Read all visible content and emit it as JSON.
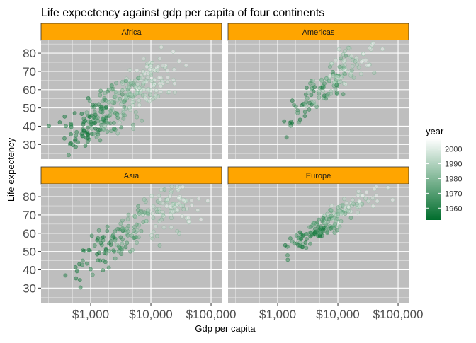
{
  "chart_data": {
    "type": "scatter",
    "title": "Life expectency against gdp per capita of four continents",
    "xlabel": "Gdp per capita",
    "ylabel": "Life expectency",
    "x_scale": "log10",
    "xlim": [
      150,
      150000
    ],
    "ylim": [
      22,
      87
    ],
    "x_ticks": [
      1000,
      10000,
      100000
    ],
    "x_tick_labels": [
      "$1,000",
      "$10,000",
      "$100,000"
    ],
    "y_ticks": [
      30,
      40,
      50,
      60,
      70,
      80
    ],
    "y_tick_labels": [
      "30",
      "40",
      "50",
      "60",
      "70",
      "80"
    ],
    "grid": true,
    "panel_background": "#bebebe",
    "strip_background": "#ffa500",
    "facet_layout": [
      2,
      2
    ],
    "legend": {
      "title": "year",
      "position": "right",
      "type": "colorbar",
      "range": [
        1952,
        2007
      ],
      "ticks": [
        1960,
        1970,
        1980,
        1990,
        2000
      ],
      "tick_labels": [
        "1960",
        "1970",
        "1980",
        "1990",
        "2000"
      ],
      "color_low": "#006d2c",
      "color_high": "#ffffff"
    },
    "point_alpha": 0.45,
    "panels": [
      {
        "name": "Africa",
        "trend": {
          "x": [
            300,
            1000,
            3000,
            10000,
            30000
          ],
          "y": [
            38,
            44,
            52,
            60,
            68
          ]
        },
        "spread": 7
      },
      {
        "name": "Americas",
        "trend": {
          "x": [
            1500,
            4000,
            10000,
            20000,
            40000
          ],
          "y": [
            44,
            58,
            67,
            73,
            77
          ]
        },
        "spread": 5
      },
      {
        "name": "Asia",
        "trend": {
          "x": [
            400,
            1500,
            5000,
            20000,
            100000
          ],
          "y": [
            40,
            52,
            63,
            74,
            72
          ]
        },
        "spread": 7
      },
      {
        "name": "Europe",
        "trend": {
          "x": [
            1500,
            4000,
            10000,
            20000,
            45000
          ],
          "y": [
            55,
            63,
            69,
            74,
            79
          ]
        },
        "spread": 3
      }
    ]
  }
}
